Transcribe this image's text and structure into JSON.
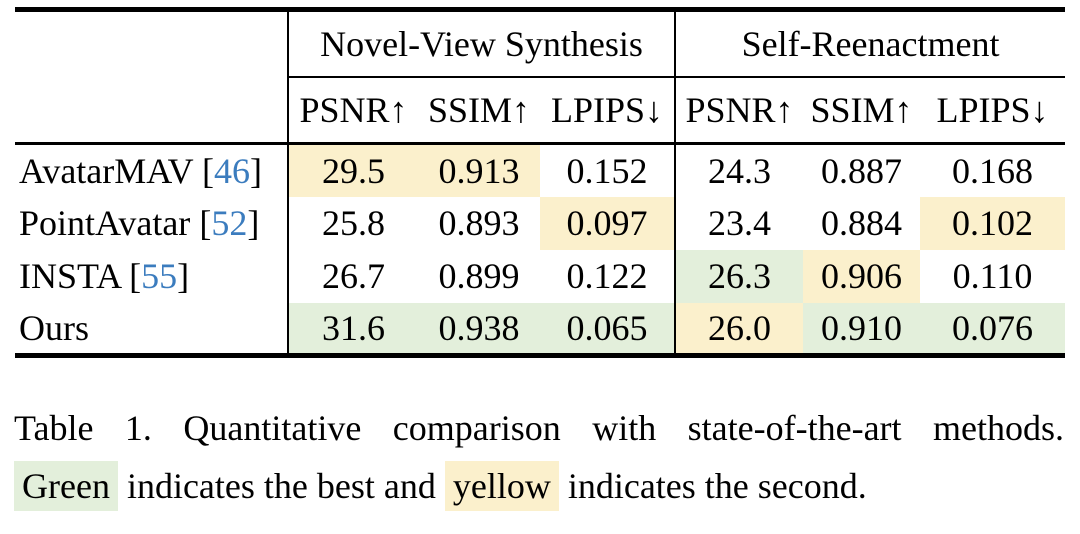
{
  "figure": {
    "background": "#ffffff"
  },
  "colors": {
    "highlight_best_green": "#e3efdb",
    "highlight_second_yellow": "#fbf0cc",
    "citation_blue": "#3b7cbe",
    "rule_black": "#000000"
  },
  "table": {
    "cite_open": " [",
    "cite_close": "]",
    "group_headers": [
      "Novel-View Synthesis",
      "Self-Reenactment"
    ],
    "metric_headers": [
      "PSNR↑",
      "SSIM↑",
      "LPIPS↓",
      "PSNR↑",
      "SSIM↑",
      "LPIPS↓"
    ],
    "rows": [
      {
        "method": "AvatarMAV",
        "cite": "46",
        "values": [
          "29.5",
          "0.913",
          "0.152",
          "24.3",
          "0.887",
          "0.168"
        ],
        "highlights": [
          "second",
          "second",
          "none",
          "none",
          "none",
          "none"
        ]
      },
      {
        "method": "PointAvatar",
        "cite": "52",
        "values": [
          "25.8",
          "0.893",
          "0.097",
          "23.4",
          "0.884",
          "0.102"
        ],
        "highlights": [
          "none",
          "none",
          "second",
          "none",
          "none",
          "second"
        ]
      },
      {
        "method": "INSTA",
        "cite": "55",
        "values": [
          "26.7",
          "0.899",
          "0.122",
          "26.3",
          "0.906",
          "0.110"
        ],
        "highlights": [
          "none",
          "none",
          "none",
          "best",
          "second",
          "none"
        ]
      },
      {
        "method": "Ours",
        "cite": "",
        "values": [
          "31.6",
          "0.938",
          "0.065",
          "26.0",
          "0.910",
          "0.076"
        ],
        "highlights": [
          "best",
          "best",
          "best",
          "second",
          "best",
          "best"
        ]
      }
    ]
  },
  "caption": {
    "label": "Table 1.",
    "text": "Quantitative comparison with state-of-the-art methods.",
    "line2_segments": [
      {
        "text": "Green",
        "highlight": "best"
      },
      {
        "text": " indicates the best and ",
        "highlight": "none"
      },
      {
        "text": "yellow",
        "highlight": "second"
      },
      {
        "text": " indicates the second.",
        "highlight": "none"
      }
    ]
  }
}
